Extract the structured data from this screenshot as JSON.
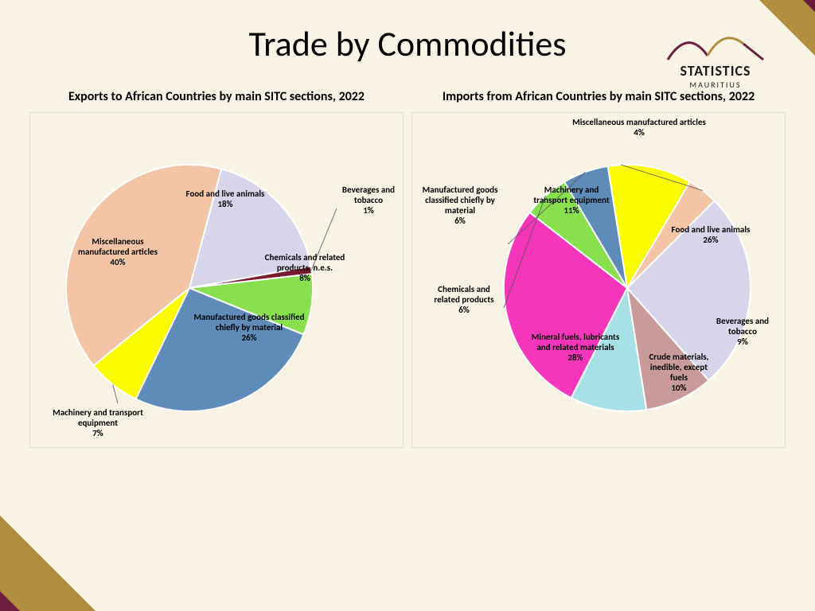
{
  "page": {
    "title": "Trade by Commodities",
    "background_color": "#f9f3e5",
    "accent_gold": "#b08d3f",
    "accent_maroon": "#6b1e3e"
  },
  "logo": {
    "brand": "STATISTICS",
    "sub": "MAURITIUS",
    "curve_dark": "#6b1e3e",
    "curve_gold": "#b08d3f"
  },
  "chart_exports": {
    "type": "pie",
    "title": "Exports to African Countries by main SITC sections, 2022",
    "title_fontsize": 16,
    "label_fontsize": 11,
    "stroke": "#ffffff",
    "stroke_width": 2,
    "start_angle_deg": -75,
    "slices": [
      {
        "label": "Food and live animals",
        "value": 18,
        "color": "#d8d4ea"
      },
      {
        "label": "Beverages and tobacco",
        "value": 1,
        "color": "#7a1a2e"
      },
      {
        "label": "Chemicals and related products, n.e.s.",
        "value": 8,
        "color": "#89e04f"
      },
      {
        "label": "Manufactured goods classified chiefly by material",
        "value": 26,
        "color": "#5f8bb8"
      },
      {
        "label": "Machinery and transport equipment",
        "value": 7,
        "color": "#fcfc00"
      },
      {
        "label": "Miscellaneous manufactured articles",
        "value": 40,
        "color": "#f3c5a6"
      }
    ]
  },
  "chart_imports": {
    "type": "pie",
    "title": "Imports from African Countries by main SITC sections, 2022",
    "title_fontsize": 16,
    "label_fontsize": 11,
    "stroke": "#ffffff",
    "stroke_width": 2,
    "start_angle_deg": -45,
    "slices": [
      {
        "label": "Food and live animals",
        "value": 26,
        "color": "#d8d4ea"
      },
      {
        "label": "Beverages and tobacco",
        "value": 9,
        "color": "#c99a9a"
      },
      {
        "label": "Crude materials, inedible, except fuels",
        "value": 10,
        "color": "#a8e0e8"
      },
      {
        "label": "Mineral fuels, lubricants and related materials",
        "value": 28,
        "color": "#f536bb"
      },
      {
        "label": "Chemicals and related products",
        "value": 6,
        "color": "#89e04f"
      },
      {
        "label": "Manufactured goods classified chiefly by material",
        "value": 6,
        "color": "#5f8bb8"
      },
      {
        "label": "Machinery and transport equipment",
        "value": 11,
        "color": "#fcfc00"
      },
      {
        "label": "Miscellaneous manufactured articles",
        "value": 4,
        "color": "#f3c5a6"
      }
    ]
  }
}
